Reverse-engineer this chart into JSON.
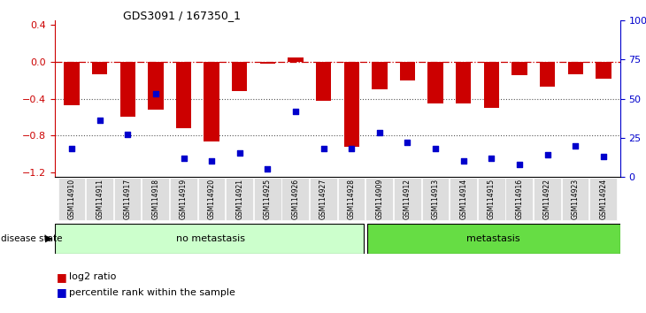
{
  "title": "GDS3091 / 167350_1",
  "samples": [
    "GSM114910",
    "GSM114911",
    "GSM114917",
    "GSM114918",
    "GSM114919",
    "GSM114920",
    "GSM114921",
    "GSM114925",
    "GSM114926",
    "GSM114927",
    "GSM114928",
    "GSM114909",
    "GSM114912",
    "GSM114913",
    "GSM114914",
    "GSM114915",
    "GSM114916",
    "GSM114922",
    "GSM114923",
    "GSM114924"
  ],
  "log2_ratio": [
    -0.47,
    -0.14,
    -0.6,
    -0.52,
    -0.72,
    -0.87,
    -0.32,
    -0.02,
    0.05,
    -0.42,
    -0.92,
    -0.3,
    -0.2,
    -0.45,
    -0.45,
    -0.5,
    -0.15,
    -0.27,
    -0.14,
    -0.18
  ],
  "percentile_rank": [
    18,
    36,
    27,
    53,
    12,
    10,
    15,
    5,
    42,
    18,
    18,
    28,
    22,
    18,
    10,
    12,
    8,
    14,
    20,
    13
  ],
  "no_metastasis_count": 11,
  "metastasis_count": 9,
  "bar_color": "#cc0000",
  "scatter_color": "#0000cc",
  "dashed_line_color": "#cc0000",
  "dotted_line_color": "#555555",
  "ylim_left": [
    -1.25,
    0.45
  ],
  "ylim_right": [
    0,
    100
  ],
  "yticks_left": [
    0.4,
    0.0,
    -0.4,
    -0.8,
    -1.2
  ],
  "yticks_right": [
    100,
    75,
    50,
    25,
    0
  ],
  "ytick_labels_right": [
    "100%",
    "75",
    "50",
    "25",
    "0"
  ],
  "no_metastasis_color": "#ccffcc",
  "metastasis_color": "#66dd44",
  "bar_width": 0.55,
  "tick_bg_color": "#dddddd"
}
